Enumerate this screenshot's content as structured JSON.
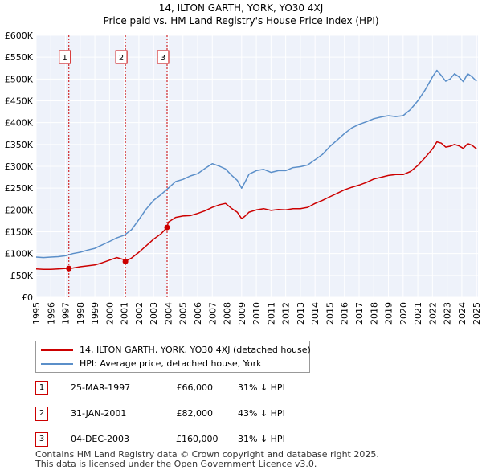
{
  "title": "14, ILTON GARTH, YORK, YO30 4XJ",
  "subtitle": "Price paid vs. HM Land Registry's House Price Index (HPI)",
  "chart_data": {
    "type": "line",
    "xlim": [
      1995,
      2025.1
    ],
    "ylim": [
      0,
      600000
    ],
    "yticks": [
      0,
      50000,
      100000,
      150000,
      200000,
      250000,
      300000,
      350000,
      400000,
      450000,
      500000,
      550000,
      600000
    ],
    "ytick_labels": [
      "£0",
      "£50K",
      "£100K",
      "£150K",
      "£200K",
      "£250K",
      "£300K",
      "£350K",
      "£400K",
      "£450K",
      "£500K",
      "£550K",
      "£600K"
    ],
    "xticks": [
      1995,
      1996,
      1997,
      1998,
      1999,
      2000,
      2001,
      2002,
      2003,
      2004,
      2005,
      2006,
      2007,
      2008,
      2009,
      2010,
      2011,
      2012,
      2013,
      2014,
      2015,
      2016,
      2017,
      2018,
      2019,
      2020,
      2021,
      2022,
      2023,
      2024,
      2025
    ],
    "xtick_labels": [
      "1995",
      "1996",
      "1997",
      "1998",
      "1999",
      "2000",
      "2001",
      "2002",
      "2003",
      "2004",
      "2005",
      "2006",
      "2007",
      "2008",
      "2009",
      "2010",
      "2011",
      "2012",
      "2013",
      "2014",
      "2015",
      "2016",
      "2017",
      "2018",
      "2019",
      "2020",
      "2021",
      "2022",
      "2023",
      "2024",
      "2025"
    ],
    "grid": true,
    "series": [
      {
        "name": "14, ILTON GARTH, YORK, YO30 4XJ (detached house)",
        "color": "#cc0000",
        "x": [
          1995.0,
          1995.5,
          1996.0,
          1996.5,
          1997.0,
          1997.23,
          1997.5,
          1998.0,
          1998.5,
          1999.0,
          1999.5,
          2000.0,
          2000.5,
          2001.0,
          2001.08,
          2001.5,
          2002.0,
          2002.5,
          2003.0,
          2003.5,
          2003.92,
          2004.0,
          2004.5,
          2005.0,
          2005.5,
          2006.0,
          2006.5,
          2007.0,
          2007.5,
          2007.9,
          2008.3,
          2008.7,
          2009.0,
          2009.2,
          2009.5,
          2010.0,
          2010.5,
          2011.0,
          2011.5,
          2012.0,
          2012.5,
          2013.0,
          2013.5,
          2014.0,
          2014.5,
          2015.0,
          2015.5,
          2016.0,
          2016.5,
          2017.0,
          2017.5,
          2018.0,
          2018.5,
          2019.0,
          2019.5,
          2020.0,
          2020.5,
          2021.0,
          2021.5,
          2022.0,
          2022.3,
          2022.6,
          2022.9,
          2023.2,
          2023.5,
          2023.8,
          2024.1,
          2024.4,
          2024.7,
          2025.0
        ],
        "values": [
          65000,
          64000,
          64000,
          65000,
          66000,
          66000,
          67000,
          70000,
          72000,
          74000,
          79000,
          85000,
          91000,
          86000,
          82000,
          90000,
          103000,
          118000,
          133000,
          145000,
          160000,
          172000,
          183000,
          186000,
          187000,
          192000,
          198000,
          206000,
          212000,
          215000,
          204000,
          195000,
          180000,
          185000,
          195000,
          200000,
          203000,
          199000,
          201000,
          200000,
          203000,
          203000,
          206000,
          215000,
          222000,
          230000,
          238000,
          246000,
          252000,
          257000,
          263000,
          271000,
          275000,
          279000,
          281000,
          281000,
          288000,
          302000,
          320000,
          340000,
          356000,
          353000,
          344000,
          346000,
          350000,
          347000,
          341000,
          352000,
          348000,
          340000
        ]
      },
      {
        "name": "HPI: Average price, detached house, York",
        "color": "#5b8fc9",
        "x": [
          1995.0,
          1995.5,
          1996.0,
          1996.5,
          1997.0,
          1997.5,
          1998.0,
          1998.5,
          1999.0,
          1999.5,
          2000.0,
          2000.5,
          2001.0,
          2001.5,
          2002.0,
          2002.5,
          2003.0,
          2003.5,
          2004.0,
          2004.5,
          2005.0,
          2005.5,
          2006.0,
          2006.5,
          2007.0,
          2007.5,
          2007.9,
          2008.3,
          2008.7,
          2009.0,
          2009.2,
          2009.5,
          2010.0,
          2010.5,
          2011.0,
          2011.5,
          2012.0,
          2012.5,
          2013.0,
          2013.5,
          2014.0,
          2014.5,
          2015.0,
          2015.5,
          2016.0,
          2016.5,
          2017.0,
          2017.5,
          2018.0,
          2018.5,
          2019.0,
          2019.5,
          2020.0,
          2020.5,
          2021.0,
          2021.5,
          2022.0,
          2022.3,
          2022.6,
          2022.9,
          2023.2,
          2023.5,
          2023.8,
          2024.1,
          2024.4,
          2024.7,
          2025.0
        ],
        "values": [
          92000,
          91000,
          92000,
          93000,
          95000,
          100000,
          103000,
          108000,
          112000,
          120000,
          128000,
          136000,
          142000,
          155000,
          178000,
          202000,
          222000,
          235000,
          250000,
          265000,
          270000,
          278000,
          283000,
          295000,
          306000,
          300000,
          294000,
          280000,
          268000,
          250000,
          262000,
          282000,
          290000,
          293000,
          286000,
          290000,
          290000,
          297000,
          299000,
          303000,
          315000,
          327000,
          345000,
          360000,
          375000,
          388000,
          396000,
          402000,
          409000,
          413000,
          416000,
          414000,
          416000,
          430000,
          450000,
          475000,
          505000,
          520000,
          508000,
          495000,
          500000,
          512000,
          505000,
          494000,
          512000,
          505000,
          495000
        ]
      }
    ],
    "events": [
      {
        "label": "1",
        "x": 1997.23,
        "y": 66000
      },
      {
        "label": "2",
        "x": 2001.08,
        "y": 82000
      },
      {
        "label": "3",
        "x": 2003.92,
        "y": 160000
      }
    ]
  },
  "legend": {
    "property": "14, ILTON GARTH, YORK, YO30 4XJ (detached house)",
    "hpi": "HPI: Average price, detached house, York"
  },
  "sales": [
    {
      "num": "1",
      "date": "25-MAR-1997",
      "price": "£66,000",
      "hpi": "31% ↓ HPI"
    },
    {
      "num": "2",
      "date": "31-JAN-2001",
      "price": "£82,000",
      "hpi": "43% ↓ HPI"
    },
    {
      "num": "3",
      "date": "04-DEC-2003",
      "price": "£160,000",
      "hpi": "31% ↓ HPI"
    }
  ],
  "footer": {
    "line1": "Contains HM Land Registry data © Crown copyright and database right 2025.",
    "line2": "This data is licensed under the Open Government Licence v3.0."
  },
  "colors": {
    "property": "#cc0000",
    "hpi": "#5b8fc9",
    "plot_bg": "#eef2fa",
    "grid": "#ffffff",
    "event_line": "#cc0000"
  }
}
